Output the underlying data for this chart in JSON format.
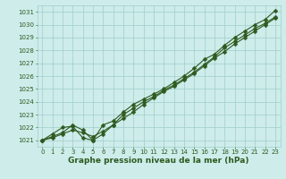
{
  "x": [
    0,
    1,
    2,
    3,
    4,
    5,
    6,
    7,
    8,
    9,
    10,
    11,
    12,
    13,
    14,
    15,
    16,
    17,
    18,
    19,
    20,
    21,
    22,
    23
  ],
  "line1": [
    1021.0,
    1021.2,
    1021.5,
    1021.8,
    1021.6,
    1021.3,
    1021.7,
    1022.2,
    1022.7,
    1023.2,
    1023.8,
    1024.3,
    1024.8,
    1025.2,
    1025.7,
    1026.2,
    1026.8,
    1027.4,
    1027.9,
    1028.5,
    1029.0,
    1029.5,
    1030.0,
    1030.5
  ],
  "line2": [
    1021.0,
    1021.3,
    1021.6,
    1022.2,
    1021.8,
    1021.0,
    1021.5,
    1022.2,
    1023.0,
    1023.5,
    1024.0,
    1024.4,
    1024.9,
    1025.3,
    1025.8,
    1026.3,
    1026.9,
    1027.5,
    1028.2,
    1028.7,
    1029.2,
    1029.7,
    1030.1,
    1030.6
  ],
  "line3": [
    1021.0,
    1021.5,
    1022.0,
    1022.1,
    1021.2,
    1021.0,
    1022.2,
    1022.5,
    1023.2,
    1023.8,
    1024.2,
    1024.6,
    1025.0,
    1025.5,
    1026.0,
    1026.6,
    1027.3,
    1027.7,
    1028.4,
    1029.0,
    1029.5,
    1030.0,
    1030.4,
    1031.1
  ],
  "bg_color": "#cdecea",
  "grid_color": "#9ececa",
  "line_color": "#2d5a1e",
  "marker": "D",
  "markersize": 2.5,
  "linewidth": 0.8,
  "xlabel": "Graphe pression niveau de la mer (hPa)",
  "ylim": [
    1020.5,
    1031.5
  ],
  "xlim": [
    -0.5,
    23.5
  ],
  "yticks": [
    1021,
    1022,
    1023,
    1024,
    1025,
    1026,
    1027,
    1028,
    1029,
    1030,
    1031
  ],
  "xticks": [
    0,
    1,
    2,
    3,
    4,
    5,
    6,
    7,
    8,
    9,
    10,
    11,
    12,
    13,
    14,
    15,
    16,
    17,
    18,
    19,
    20,
    21,
    22,
    23
  ],
  "tick_fontsize": 5.0,
  "xlabel_fontsize": 6.5
}
